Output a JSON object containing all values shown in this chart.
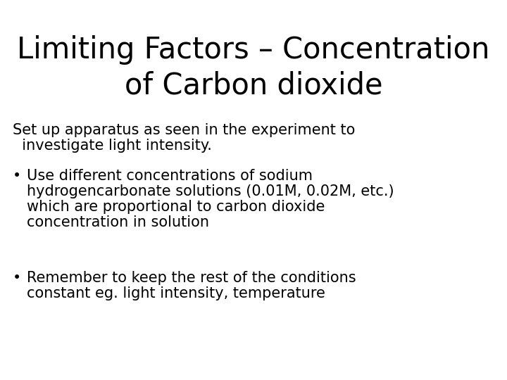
{
  "title_line1": "Limiting Factors – Concentration",
  "title_line2": "of Carbon dioxide",
  "title_fontsize": 30,
  "title_fontweight": "normal",
  "body_fontsize": 15,
  "background_color": "#ffffff",
  "text_color": "#000000",
  "intro_text_line1": "Set up apparatus as seen in the experiment to",
  "intro_text_line2": "  investigate light intensity.",
  "bullet1_line1": "Use different concentrations of sodium",
  "bullet1_line2": "hydrogencarbonate solutions (0.01M, 0.02M, etc.)",
  "bullet1_line3": "which are proportional to carbon dioxide",
  "bullet1_line4": "concentration in solution",
  "bullet2_line1": "Remember to keep the rest of the conditions",
  "bullet2_line2": "constant eg. light intensity, temperature"
}
